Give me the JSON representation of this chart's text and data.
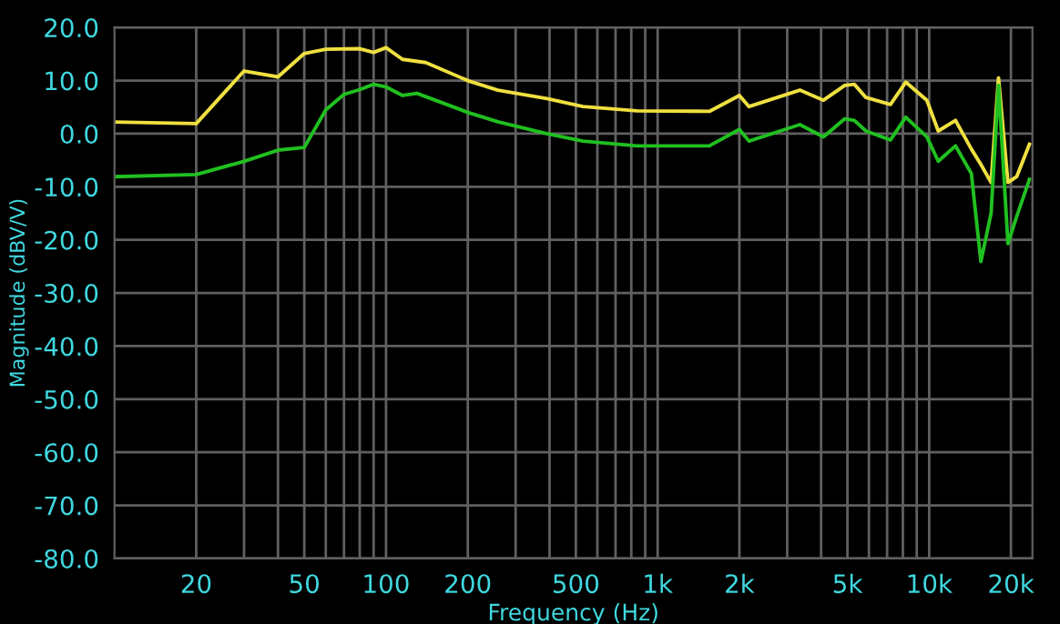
{
  "chart_data": {
    "type": "line",
    "xlabel": "Frequency (Hz)",
    "ylabel": "Magnitude (dBV/V)",
    "log": "x",
    "grid": true,
    "marker": "none",
    "line_style": "solid",
    "xlim": [
      10,
      24000
    ],
    "ylim": [
      -80,
      20
    ],
    "xticks": [
      20,
      50,
      100,
      200,
      500,
      {
        "value": 1000,
        "label": "1k"
      },
      {
        "value": 2000,
        "label": "2k"
      },
      {
        "value": 5000,
        "label": "5k"
      },
      {
        "value": 10000,
        "label": "10k"
      },
      {
        "value": 20000,
        "label": "20k"
      }
    ],
    "yticks": [
      {
        "value": 20,
        "label": "20.0"
      },
      {
        "value": 10,
        "label": "10.0"
      },
      {
        "value": 0,
        "label": "0.0"
      },
      {
        "value": -10,
        "label": "-10.0"
      },
      {
        "value": -20,
        "label": "-20.0"
      },
      {
        "value": -30,
        "label": "-30.0"
      },
      {
        "value": -40,
        "label": "-40.0"
      },
      {
        "value": -50,
        "label": "-50.0"
      },
      {
        "value": -60,
        "label": "-60.0"
      },
      {
        "value": -70,
        "label": "-70.0"
      },
      {
        "value": -80,
        "label": "-80.0"
      }
    ],
    "series": [
      {
        "color": "#f0e040",
        "x": [
          10,
          20,
          30,
          40,
          50,
          60,
          80,
          90,
          100,
          115,
          140,
          202,
          258,
          391,
          531,
          840,
          1550,
          2000,
          2170,
          3340,
          4080,
          4890,
          5300,
          5850,
          7200,
          8200,
          9800,
          10800,
          12500,
          14300,
          15500,
          16900,
          18000,
          19500,
          21000,
          23400
        ],
        "values": [
          2.2,
          1.9,
          11.8,
          10.7,
          15.1,
          15.9,
          16.0,
          15.3,
          16.2,
          14.0,
          13.4,
          9.9,
          8.2,
          6.6,
          5.1,
          4.3,
          4.2,
          7.2,
          5.1,
          8.2,
          6.3,
          9.1,
          9.3,
          6.8,
          5.5,
          9.7,
          6.3,
          0.5,
          2.5,
          -2.9,
          -5.8,
          -9.2,
          10.5,
          -9.2,
          -8.1,
          -2.0
        ]
      },
      {
        "color": "#20c020",
        "x": [
          10,
          20,
          30,
          40,
          50,
          60,
          70,
          80,
          90,
          100,
          115,
          130,
          200,
          260,
          390,
          531,
          840,
          1550,
          2000,
          2170,
          3340,
          4080,
          4890,
          5300,
          5850,
          7200,
          8200,
          9800,
          10800,
          12500,
          14300,
          15500,
          16900,
          18000,
          19500,
          21000,
          23400
        ],
        "values": [
          -8.1,
          -7.7,
          -5.2,
          -3.1,
          -2.6,
          4.5,
          7.4,
          8.3,
          9.3,
          8.8,
          7.2,
          7.6,
          4.0,
          2.2,
          0.0,
          -1.4,
          -2.3,
          -2.3,
          0.8,
          -1.4,
          1.7,
          -0.6,
          2.8,
          2.5,
          0.5,
          -1.2,
          3.1,
          -0.6,
          -5.2,
          -2.3,
          -7.5,
          -24.1,
          -15.0,
          9.1,
          -20.7,
          -15.6,
          -8.6
        ]
      }
    ]
  }
}
